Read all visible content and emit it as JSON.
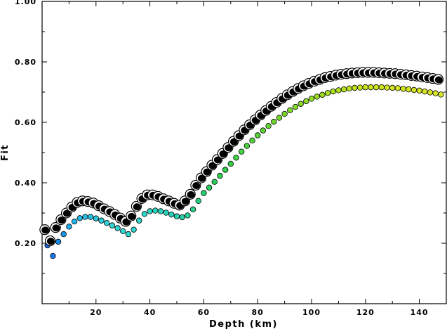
{
  "chart_data": {
    "type": "scatter",
    "title": "",
    "xlabel": "Depth (km)",
    "ylabel": "Fit",
    "xlim": [
      0,
      150
    ],
    "ylim": [
      0,
      1.0
    ],
    "xticks": [
      20,
      40,
      60,
      80,
      100,
      120,
      140
    ],
    "yticks": [
      0.2,
      0.4,
      0.6,
      0.8,
      1.0
    ],
    "ytick_labels": [
      "0.20",
      "0.40",
      "0.60",
      "0.80",
      "1.00"
    ],
    "grid": false,
    "legend": "none",
    "series": [
      {
        "marker": "black mechanism beachball (large)",
        "x": [
          1,
          3,
          5,
          7,
          9,
          11,
          13,
          15,
          17,
          19,
          21,
          23,
          25,
          27,
          29,
          31,
          33,
          35,
          37,
          39,
          41,
          43,
          45,
          47,
          49,
          51,
          53,
          55,
          57,
          59,
          61,
          63,
          65,
          67,
          69,
          71,
          73,
          75,
          77,
          79,
          81,
          83,
          85,
          87,
          89,
          91,
          93,
          95,
          97,
          99,
          101,
          103,
          105,
          107,
          109,
          111,
          113,
          115,
          117,
          119,
          121,
          123,
          125,
          127,
          129,
          131,
          133,
          135,
          137,
          139,
          141,
          143,
          145,
          147
        ],
        "y": [
          0.245,
          0.208,
          0.252,
          0.278,
          0.3,
          0.32,
          0.335,
          0.34,
          0.338,
          0.333,
          0.324,
          0.314,
          0.305,
          0.295,
          0.283,
          0.272,
          0.29,
          0.322,
          0.348,
          0.36,
          0.36,
          0.355,
          0.347,
          0.34,
          0.332,
          0.326,
          0.34,
          0.362,
          0.392,
          0.416,
          0.437,
          0.458,
          0.477,
          0.497,
          0.517,
          0.537,
          0.556,
          0.575,
          0.592,
          0.608,
          0.624,
          0.639,
          0.653,
          0.666,
          0.679,
          0.691,
          0.702,
          0.712,
          0.721,
          0.729,
          0.736,
          0.742,
          0.748,
          0.752,
          0.756,
          0.759,
          0.761,
          0.763,
          0.764,
          0.765,
          0.765,
          0.765,
          0.764,
          0.763,
          0.762,
          0.761,
          0.759,
          0.757,
          0.755,
          0.753,
          0.75,
          0.748,
          0.745,
          0.742
        ]
      },
      {
        "marker": "small colored circle (color by depth)",
        "x": [
          2,
          4,
          6,
          8,
          10,
          12,
          14,
          16,
          18,
          20,
          22,
          24,
          26,
          28,
          30,
          32,
          34,
          36,
          38,
          40,
          42,
          44,
          46,
          48,
          50,
          52,
          54,
          56,
          58,
          60,
          62,
          64,
          66,
          68,
          70,
          72,
          74,
          76,
          78,
          80,
          82,
          84,
          86,
          88,
          90,
          92,
          94,
          96,
          98,
          100,
          102,
          104,
          106,
          108,
          110,
          112,
          114,
          116,
          118,
          120,
          122,
          124,
          126,
          128,
          130,
          132,
          134,
          136,
          138,
          140,
          142,
          144,
          146,
          148
        ],
        "y": [
          0.193,
          0.158,
          0.205,
          0.23,
          0.255,
          0.272,
          0.283,
          0.287,
          0.287,
          0.282,
          0.275,
          0.267,
          0.259,
          0.25,
          0.24,
          0.23,
          0.245,
          0.275,
          0.297,
          0.306,
          0.308,
          0.306,
          0.301,
          0.295,
          0.289,
          0.286,
          0.292,
          0.312,
          0.34,
          0.366,
          0.384,
          0.403,
          0.423,
          0.443,
          0.463,
          0.483,
          0.503,
          0.522,
          0.54,
          0.557,
          0.573,
          0.588,
          0.602,
          0.615,
          0.628,
          0.64,
          0.651,
          0.661,
          0.67,
          0.678,
          0.685,
          0.691,
          0.697,
          0.702,
          0.706,
          0.709,
          0.712,
          0.714,
          0.715,
          0.716,
          0.716,
          0.716,
          0.716,
          0.715,
          0.714,
          0.713,
          0.711,
          0.709,
          0.707,
          0.705,
          0.702,
          0.699,
          0.696,
          0.692
        ]
      }
    ]
  }
}
